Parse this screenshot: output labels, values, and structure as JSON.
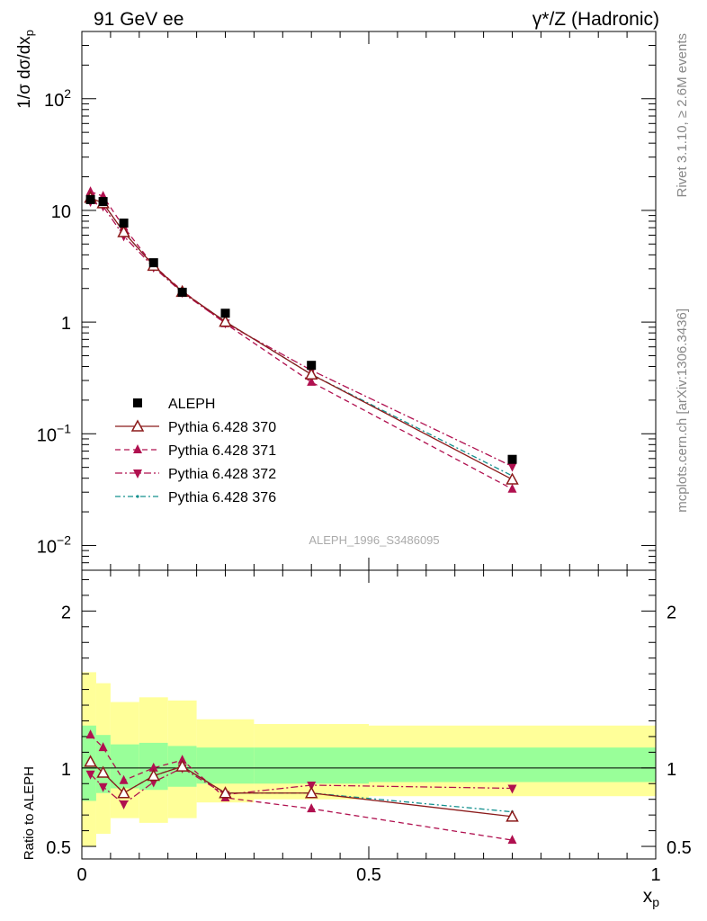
{
  "header": {
    "left": "91 GeV ee",
    "right_pre": "γ*/Z (Hadronic)"
  },
  "side": {
    "rivet": "Rivet 3.1.10, ≥ 2.6M events",
    "mcplots": "mcplots.cern.ch [arXiv:1306.3436]"
  },
  "watermark": "ALEPH_1996_S3486095",
  "chart_data": [
    {
      "type": "line",
      "role": "main",
      "ylabel": "1/σ dσ/dx_p",
      "yscale": "log",
      "ylim": [
        0.006,
        400
      ],
      "xlim": [
        0,
        1
      ],
      "yticks": [
        {
          "v": 0.01,
          "base": "10",
          "exp": "−2"
        },
        {
          "v": 0.1,
          "base": "10",
          "exp": "−1"
        },
        {
          "v": 1,
          "base": "1",
          "exp": ""
        },
        {
          "v": 10,
          "base": "10",
          "exp": ""
        },
        {
          "v": 100,
          "base": "10",
          "exp": "2"
        }
      ],
      "x": [
        0.015,
        0.037,
        0.073,
        0.125,
        0.175,
        0.25,
        0.4,
        0.75
      ],
      "series": [
        {
          "name": "ALEPH",
          "color": "#000000",
          "marker": "square",
          "dash": "none",
          "values": [
            12.5,
            12.0,
            7.7,
            3.4,
            1.85,
            1.2,
            0.41,
            0.059
          ]
        },
        {
          "name": "Pythia 6.428 370",
          "color": "#8b1a1a",
          "marker": "open-triangle",
          "dash": "none",
          "values": [
            13.0,
            11.6,
            6.4,
            3.2,
            1.87,
            1.01,
            0.34,
            0.039
          ]
        },
        {
          "name": "Pythia 6.428 371",
          "color": "#b0104f",
          "marker": "triangle",
          "dash": "6,4",
          "values": [
            14.7,
            13.4,
            7.1,
            3.2,
            1.91,
            0.97,
            0.29,
            0.032
          ]
        },
        {
          "name": "Pythia 6.428 372",
          "color": "#b0104f",
          "marker": "triangle-down",
          "dash": "8,3,2,3",
          "values": [
            12.0,
            10.9,
            5.9,
            3.1,
            1.84,
            0.98,
            0.37,
            0.051
          ]
        },
        {
          "name": "Pythia 6.428 376",
          "color": "#13908e",
          "marker": "dot",
          "dash": "6,3,2,3",
          "values": [
            13.0,
            11.6,
            6.4,
            3.2,
            1.87,
            1.01,
            0.34,
            0.042
          ]
        }
      ]
    },
    {
      "type": "line",
      "role": "ratio",
      "ylabel": "Ratio to ALEPH",
      "xlabel": "x_p",
      "ylim": [
        0.42,
        2.26
      ],
      "xlim": [
        0,
        1
      ],
      "yticks": [
        0.5,
        1,
        2
      ],
      "xticks": [
        {
          "v": 0,
          "label": "0"
        },
        {
          "v": 0.5,
          "label": "0.5"
        },
        {
          "v": 1,
          "label": "1"
        }
      ],
      "x": [
        0.015,
        0.037,
        0.073,
        0.125,
        0.175,
        0.25,
        0.4,
        0.75
      ],
      "band_bins": [
        0,
        0.025,
        0.05,
        0.1,
        0.15,
        0.2,
        0.3,
        0.5,
        1.0
      ],
      "band_inner": [
        [
          0.79,
          1.27
        ],
        [
          0.84,
          1.21
        ],
        [
          0.87,
          1.15
        ],
        [
          0.86,
          1.16
        ],
        [
          0.88,
          1.14
        ],
        [
          0.9,
          1.13
        ],
        [
          0.9,
          1.13
        ],
        [
          0.91,
          1.13
        ]
      ],
      "band_outer": [
        [
          0.5,
          1.61
        ],
        [
          0.58,
          1.54
        ],
        [
          0.68,
          1.42
        ],
        [
          0.65,
          1.45
        ],
        [
          0.68,
          1.43
        ],
        [
          0.78,
          1.31
        ],
        [
          0.8,
          1.28
        ],
        [
          0.82,
          1.27
        ]
      ],
      "band_colors": {
        "inner": "#99ff99",
        "outer": "#ffff99"
      },
      "series": [
        {
          "name": "Pythia 6.428 370",
          "values": [
            1.04,
            0.97,
            0.84,
            0.95,
            1.01,
            0.84,
            0.84,
            0.69
          ]
        },
        {
          "name": "Pythia 6.428 371",
          "values": [
            1.21,
            1.13,
            0.92,
            1.0,
            1.05,
            0.81,
            0.74,
            0.54
          ]
        },
        {
          "name": "Pythia 6.428 372",
          "values": [
            0.96,
            0.88,
            0.77,
            0.91,
            1.0,
            0.83,
            0.89,
            0.87
          ]
        },
        {
          "name": "Pythia 6.428 376",
          "values": [
            1.04,
            0.97,
            0.84,
            0.95,
            1.01,
            0.84,
            0.84,
            0.72
          ]
        }
      ]
    }
  ]
}
